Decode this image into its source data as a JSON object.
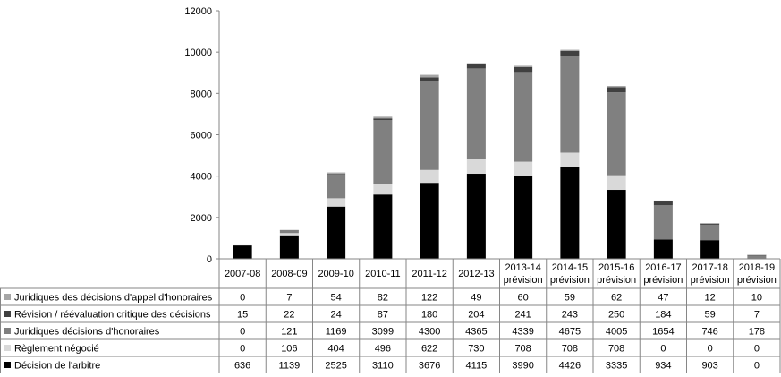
{
  "chart_data": {
    "type": "bar",
    "stacked": true,
    "categories": [
      [
        "2007-08"
      ],
      [
        "2008-09"
      ],
      [
        "2009-10"
      ],
      [
        "2010-11"
      ],
      [
        "2011-12"
      ],
      [
        "2012-13"
      ],
      [
        "2013-14",
        "prévision"
      ],
      [
        "2014-15",
        "prévision"
      ],
      [
        "2015-16",
        "prévision"
      ],
      [
        "2016-17",
        "prévision"
      ],
      [
        "2017-18",
        "prévision"
      ],
      [
        "2018-19",
        "prévision"
      ]
    ],
    "ylim": [
      0,
      12000
    ],
    "yticks": [
      "0",
      "2000",
      "4000",
      "6000",
      "8000",
      "10000",
      "12000"
    ],
    "grid": false,
    "legend": "data-table-left",
    "series": [
      {
        "name": "Décision de l'arbitre",
        "color": "#000000",
        "values": [
          636,
          1139,
          2525,
          3110,
          3676,
          4115,
          3990,
          4426,
          3335,
          934,
          903,
          0
        ]
      },
      {
        "name": "Règlement négocié",
        "color": "#d9d9d9",
        "values": [
          0,
          106,
          404,
          496,
          622,
          730,
          708,
          708,
          708,
          0,
          0,
          0
        ]
      },
      {
        "name": "Juridiques décisions d'honoraires",
        "color": "#808080",
        "values": [
          0,
          121,
          1169,
          3099,
          4300,
          4365,
          4339,
          4675,
          4005,
          1654,
          746,
          178
        ]
      },
      {
        "name": "Révision / réévaluation critique des décisions",
        "color": "#404040",
        "values": [
          15,
          22,
          24,
          87,
          180,
          204,
          241,
          243,
          250,
          184,
          59,
          7
        ]
      },
      {
        "name": "Juridiques des décisions d'appel d'honoraires",
        "color": "#a6a6a6",
        "values": [
          0,
          7,
          54,
          82,
          122,
          49,
          60,
          59,
          62,
          47,
          12,
          10
        ]
      }
    ],
    "table_row_order": [
      4,
      3,
      2,
      1,
      0
    ]
  }
}
